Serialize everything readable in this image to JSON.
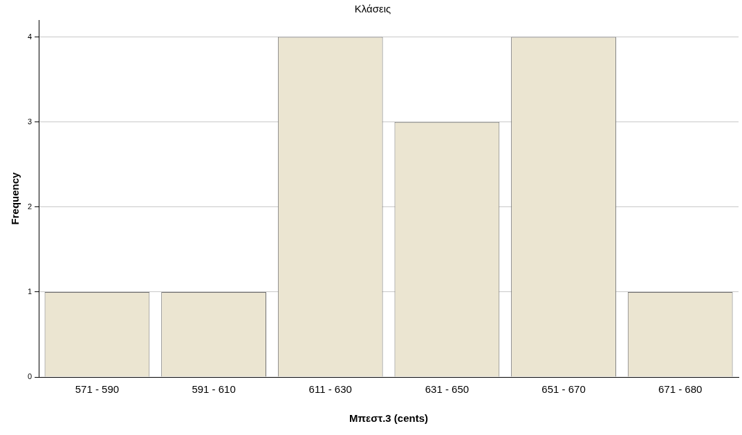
{
  "chart_data": {
    "type": "bar",
    "title": "Κλάσεις",
    "xlabel": "Μπεστ.3 (cents)",
    "ylabel": "Frequency",
    "categories": [
      "571 - 590",
      "591 - 610",
      "611 - 630",
      "631 - 650",
      "651 - 670",
      "671 - 680"
    ],
    "values": [
      1,
      1,
      4,
      3,
      4,
      1
    ],
    "color": "#ebe5d1",
    "ylim": [
      0,
      4.2
    ],
    "yticks": [
      0,
      1,
      2,
      3,
      4
    ],
    "grid": "y",
    "legend": false
  }
}
